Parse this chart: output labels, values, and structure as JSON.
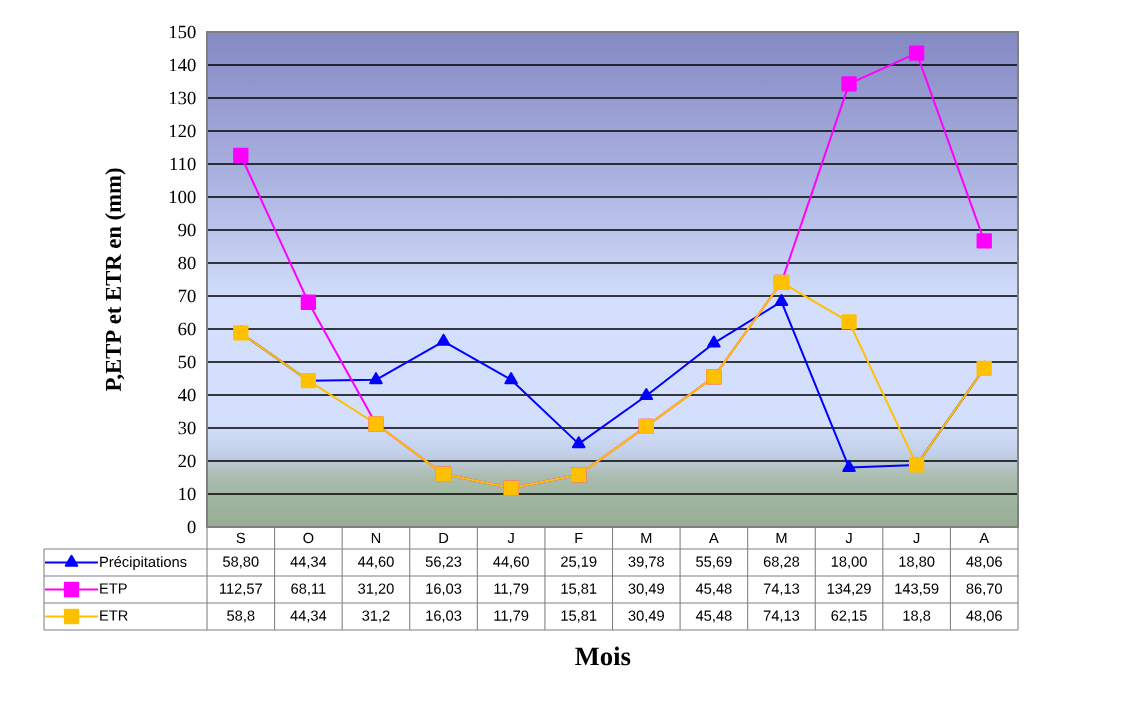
{
  "chart_data": {
    "type": "line",
    "xlabel": "Mois",
    "ylabel": "P,ETP et ETR en (mm)",
    "categories": [
      "S",
      "O",
      "N",
      "D",
      "J",
      "F",
      "M",
      "A",
      "M",
      "J",
      "J",
      "A"
    ],
    "series": [
      {
        "name": "Précipitations",
        "color": "#0000ff",
        "marker": "triangle",
        "values": [
          58.8,
          44.34,
          44.6,
          56.23,
          44.6,
          25.19,
          39.78,
          55.69,
          68.28,
          18.0,
          18.8,
          48.06
        ],
        "value_labels": [
          "58,80",
          "44,34",
          "44,60",
          "56,23",
          "44,60",
          "25,19",
          "39,78",
          "55,69",
          "68,28",
          "18,00",
          "18,80",
          "48,06"
        ]
      },
      {
        "name": "ETP",
        "color": "#ff00ff",
        "marker": "square",
        "values": [
          112.57,
          68.11,
          31.2,
          16.03,
          11.79,
          15.81,
          30.49,
          45.48,
          74.13,
          134.29,
          143.59,
          86.7
        ],
        "value_labels": [
          "112,57",
          "68,11",
          "31,20",
          "16,03",
          "11,79",
          "15,81",
          "30,49",
          "45,48",
          "74,13",
          "134,29",
          "143,59",
          "86,70"
        ]
      },
      {
        "name": "ETR",
        "color": "#ffc000",
        "marker": "square",
        "values": [
          58.8,
          44.34,
          31.2,
          16.03,
          11.79,
          15.81,
          30.49,
          45.48,
          74.13,
          62.15,
          18.8,
          48.06
        ],
        "value_labels": [
          "58,8",
          "44,34",
          "31,2",
          "16,03",
          "11,79",
          "15,81",
          "30,49",
          "45,48",
          "74,13",
          "62,15",
          "18,8",
          "48,06"
        ]
      }
    ],
    "ylim": [
      0,
      150
    ],
    "yticks": [
      0,
      10,
      20,
      30,
      40,
      50,
      60,
      70,
      80,
      90,
      100,
      110,
      120,
      130,
      140,
      150
    ],
    "grid": "y",
    "legend": "bottom"
  }
}
